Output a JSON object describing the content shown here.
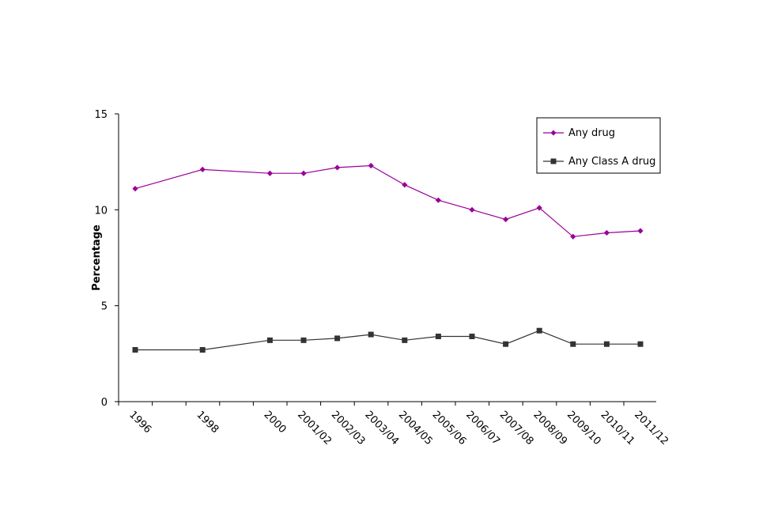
{
  "chart_data": {
    "type": "line",
    "title": "",
    "xlabel": "",
    "ylabel": "Percentage",
    "ylim": [
      0,
      15
    ],
    "yticks": [
      0,
      5,
      10,
      15
    ],
    "categories": [
      "1996",
      "1998",
      "2000",
      "2001/02",
      "2002/03",
      "2003/04",
      "2004/05",
      "2005/06",
      "2006/07",
      "2007/08",
      "2008/09",
      "2009/10",
      "2010/11",
      "2011/12"
    ],
    "category_positions": [
      0,
      2,
      4,
      5,
      6,
      7,
      8,
      9,
      10,
      11,
      12,
      13,
      14,
      15
    ],
    "legend_position": "top-right",
    "series": [
      {
        "name": "Any drug",
        "color": "#990099",
        "marker": "diamond",
        "values": [
          11.1,
          12.1,
          11.9,
          11.9,
          12.2,
          12.3,
          11.3,
          10.5,
          10.0,
          9.5,
          10.1,
          8.6,
          8.8,
          8.9
        ]
      },
      {
        "name": "Any Class A drug",
        "color": "#333333",
        "marker": "square",
        "values": [
          2.7,
          2.7,
          3.2,
          3.2,
          3.3,
          3.5,
          3.2,
          3.4,
          3.4,
          3.0,
          3.7,
          3.0,
          3.0,
          3.0
        ]
      }
    ]
  }
}
